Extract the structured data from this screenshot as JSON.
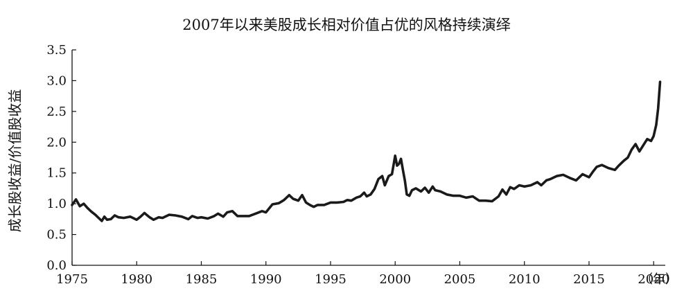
{
  "chart_data": {
    "type": "line",
    "title": "2007年以来美股成长相对价值占优的风格持续演绎",
    "ylabel": "成长股收益/价值股收益",
    "x_unit_label": "（年）",
    "xlim": [
      1975,
      2020.9
    ],
    "ylim": [
      0,
      3.5
    ],
    "x_ticks": [
      1975,
      1980,
      1985,
      1990,
      1995,
      2000,
      2005,
      2010,
      2015,
      2020
    ],
    "y_ticks": [
      "0.0",
      "0.5",
      "1.0",
      "1.5",
      "2.0",
      "2.5",
      "3.0",
      "3.5"
    ],
    "line_color": "#1a1a1a",
    "series": [
      {
        "x": [
          1975.0,
          1975.3,
          1975.6,
          1975.9,
          1976.2,
          1976.5,
          1976.8,
          1977.1,
          1977.3,
          1977.5,
          1977.7,
          1978.0,
          1978.3,
          1978.6,
          1979.0,
          1979.5,
          1980.0,
          1980.3,
          1980.6,
          1981.0,
          1981.3,
          1981.7,
          1982.0,
          1982.5,
          1983.0,
          1983.5,
          1984.0,
          1984.3,
          1984.7,
          1985.0,
          1985.5,
          1986.0,
          1986.3,
          1986.7,
          1987.0,
          1987.4,
          1987.8,
          1988.2,
          1988.7,
          1989.2,
          1989.7,
          1990.0,
          1990.5,
          1991.0,
          1991.4,
          1991.8,
          1992.1,
          1992.5,
          1992.8,
          1993.1,
          1993.4,
          1993.7,
          1994.0,
          1994.5,
          1995.0,
          1995.5,
          1996.0,
          1996.3,
          1996.6,
          1997.0,
          1997.3,
          1997.6,
          1997.8,
          1998.1,
          1998.4,
          1998.7,
          1999.0,
          1999.2,
          1999.5,
          1999.75,
          2000.0,
          2000.15,
          2000.3,
          2000.45,
          2000.6,
          2000.75,
          2000.9,
          2001.1,
          2001.3,
          2001.6,
          2002.0,
          2002.3,
          2002.6,
          2002.9,
          2003.1,
          2003.5,
          2004.0,
          2004.5,
          2005.0,
          2005.5,
          2006.0,
          2006.5,
          2007.0,
          2007.5,
          2008.0,
          2008.3,
          2008.6,
          2008.9,
          2009.2,
          2009.6,
          2010.0,
          2010.5,
          2011.0,
          2011.3,
          2011.7,
          2012.0,
          2012.5,
          2013.0,
          2013.5,
          2014.0,
          2014.5,
          2015.0,
          2015.3,
          2015.6,
          2016.0,
          2016.5,
          2017.0,
          2017.3,
          2017.7,
          2018.0,
          2018.3,
          2018.6,
          2018.9,
          2019.2,
          2019.5,
          2019.8,
          2020.0,
          2020.2,
          2020.35,
          2020.5
        ],
        "y": [
          0.98,
          1.07,
          0.96,
          1.0,
          0.93,
          0.87,
          0.82,
          0.76,
          0.72,
          0.79,
          0.74,
          0.75,
          0.81,
          0.78,
          0.77,
          0.79,
          0.74,
          0.79,
          0.85,
          0.78,
          0.74,
          0.78,
          0.77,
          0.82,
          0.81,
          0.79,
          0.75,
          0.8,
          0.77,
          0.78,
          0.76,
          0.8,
          0.84,
          0.79,
          0.86,
          0.88,
          0.8,
          0.8,
          0.8,
          0.84,
          0.88,
          0.86,
          0.99,
          1.01,
          1.06,
          1.14,
          1.08,
          1.05,
          1.14,
          1.02,
          0.98,
          0.95,
          0.98,
          0.98,
          1.02,
          1.02,
          1.03,
          1.06,
          1.05,
          1.1,
          1.12,
          1.18,
          1.12,
          1.15,
          1.24,
          1.4,
          1.45,
          1.3,
          1.45,
          1.48,
          1.78,
          1.62,
          1.65,
          1.73,
          1.55,
          1.38,
          1.15,
          1.13,
          1.22,
          1.25,
          1.2,
          1.26,
          1.18,
          1.28,
          1.22,
          1.2,
          1.15,
          1.13,
          1.13,
          1.1,
          1.12,
          1.05,
          1.05,
          1.04,
          1.12,
          1.23,
          1.15,
          1.27,
          1.24,
          1.3,
          1.28,
          1.3,
          1.35,
          1.3,
          1.38,
          1.4,
          1.45,
          1.47,
          1.42,
          1.38,
          1.48,
          1.43,
          1.52,
          1.6,
          1.63,
          1.58,
          1.55,
          1.62,
          1.7,
          1.75,
          1.88,
          1.97,
          1.85,
          1.95,
          2.05,
          2.02,
          2.1,
          2.28,
          2.55,
          2.98
        ]
      }
    ]
  }
}
